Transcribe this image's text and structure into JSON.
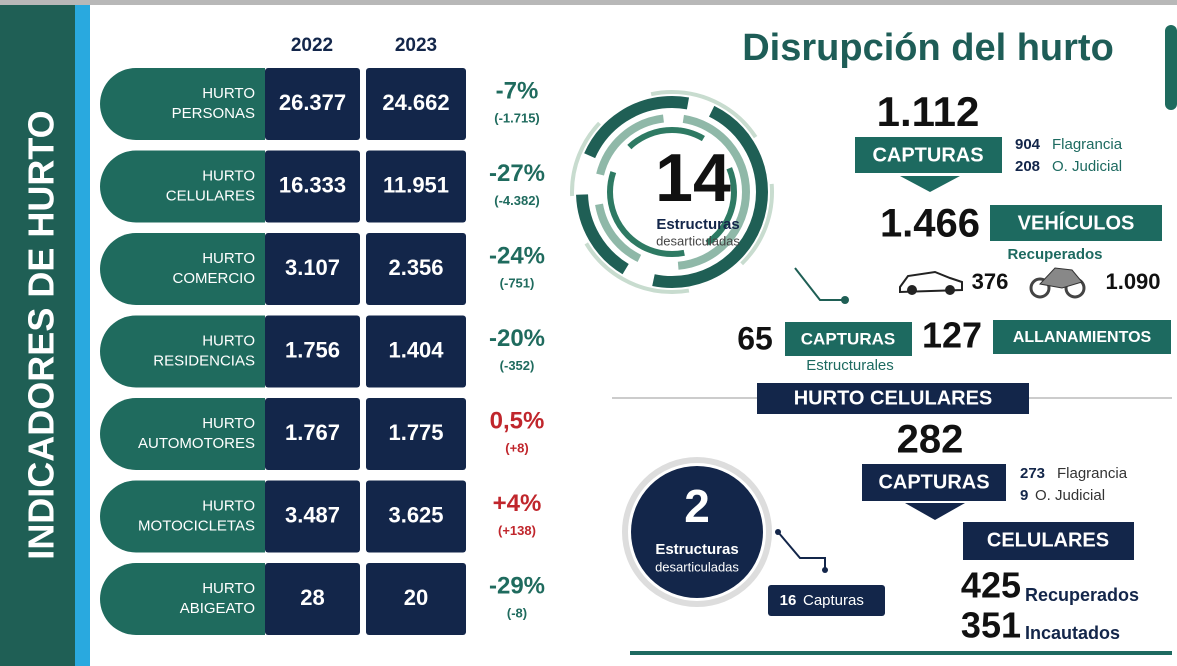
{
  "sidebar": {
    "title": "INDICADORES DE HURTO"
  },
  "table": {
    "headers": [
      "2022",
      "2023"
    ],
    "rows": [
      {
        "label": [
          "HURTO",
          "PERSONAS"
        ],
        "values": [
          "26.377",
          "24.662"
        ],
        "change": "-7%",
        "diff": "(-1.715)",
        "color": "#1f6b5e"
      },
      {
        "label": [
          "HURTO",
          "CELULARES"
        ],
        "values": [
          "16.333",
          "11.951"
        ],
        "change": "-27%",
        "diff": "(-4.382)",
        "color": "#1f6b5e"
      },
      {
        "label": [
          "HURTO",
          "COMERCIO"
        ],
        "values": [
          "3.107",
          "2.356"
        ],
        "change": "-24%",
        "diff": "(-751)",
        "color": "#1f6b5e"
      },
      {
        "label": [
          "HURTO",
          "RESIDENCIAS"
        ],
        "values": [
          "1.756",
          "1.404"
        ],
        "change": "-20%",
        "diff": "(-352)",
        "color": "#1f6b5e"
      },
      {
        "label": [
          "HURTO",
          "AUTOMOTORES"
        ],
        "values": [
          "1.767",
          "1.775"
        ],
        "change": "0,5%",
        "diff": "(+8)",
        "color": "#c0262c"
      },
      {
        "label": [
          "HURTO",
          "MOTOCICLETAS"
        ],
        "values": [
          "3.487",
          "3.625"
        ],
        "change": "+4%",
        "diff": "(+138)",
        "color": "#c0262c"
      },
      {
        "label": [
          "HURTO",
          "ABIGEATO"
        ],
        "values": [
          "28",
          "20"
        ],
        "change": "-29%",
        "diff": "(-8)",
        "color": "#1f6b5e"
      }
    ]
  },
  "disruption": {
    "title": "Disrupción del hurto",
    "structures": {
      "number": "14",
      "label": "Estructuras",
      "sublabel": "desarticuladas"
    },
    "captures": {
      "number": "1.112",
      "label": "CAPTURAS",
      "flagrancia_n": "904",
      "flagrancia": "Flagrancia",
      "judicial_n": "208",
      "judicial": "O. Judicial"
    },
    "vehicles": {
      "number": "1.466",
      "label": "VEHÍCULOS",
      "sublabel": "Recuperados",
      "cars": "376",
      "motorcycles": "1.090"
    },
    "structural_captures": {
      "number": "65",
      "label": "CAPTURAS",
      "sublabel": "Estructurales"
    },
    "raids": {
      "number": "127",
      "label": "ALLANAMIENTOS"
    }
  },
  "cellphones": {
    "title": "HURTO CELULARES",
    "captures": {
      "number": "282",
      "label": "CAPTURAS",
      "flagrancia_n": "273",
      "flagrancia": "Flagrancia",
      "judicial_n": "9",
      "judicial": "O. Judicial"
    },
    "structures": {
      "number": "2",
      "label": "Estructuras",
      "sublabel": "desarticuladas",
      "captures_n": "16",
      "captures": "Capturas"
    },
    "phones": {
      "label": "CELULARES",
      "recovered_n": "425",
      "recovered": "Recuperados",
      "seized_n": "351",
      "seized": "Incautados"
    }
  }
}
